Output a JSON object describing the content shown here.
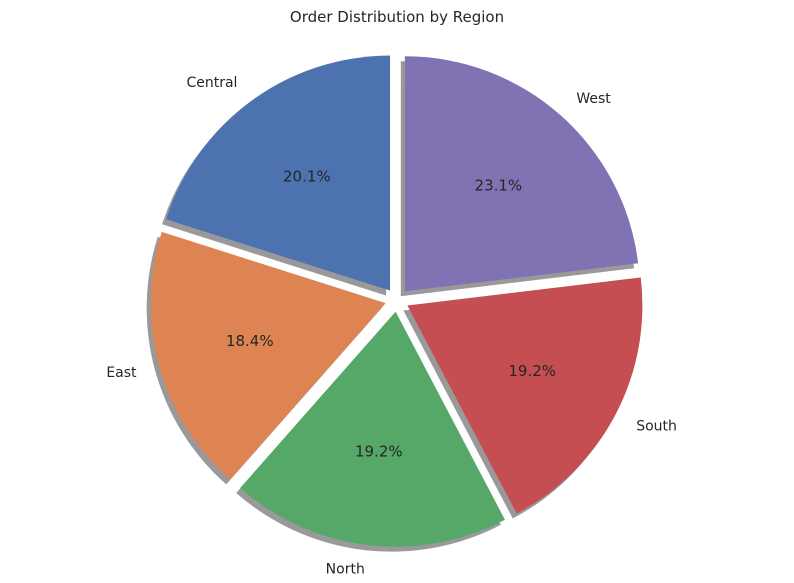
{
  "chart_data": {
    "type": "pie",
    "title": "Order Distribution by Region",
    "start_angle_deg": 90,
    "direction": "counterclockwise",
    "shadow": true,
    "explode": 0.05,
    "slices": [
      {
        "label": "Central",
        "value": 20.1,
        "pct_label": "20.1%",
        "color": "#4c72b0"
      },
      {
        "label": "East",
        "value": 18.4,
        "pct_label": "18.4%",
        "color": "#dd8452"
      },
      {
        "label": "North",
        "value": 19.2,
        "pct_label": "19.2%",
        "color": "#55a868"
      },
      {
        "label": "South",
        "value": 19.2,
        "pct_label": "19.2%",
        "color": "#c44e52"
      },
      {
        "label": "West",
        "value": 23.1,
        "pct_label": "23.1%",
        "color": "#8172b3"
      }
    ]
  }
}
